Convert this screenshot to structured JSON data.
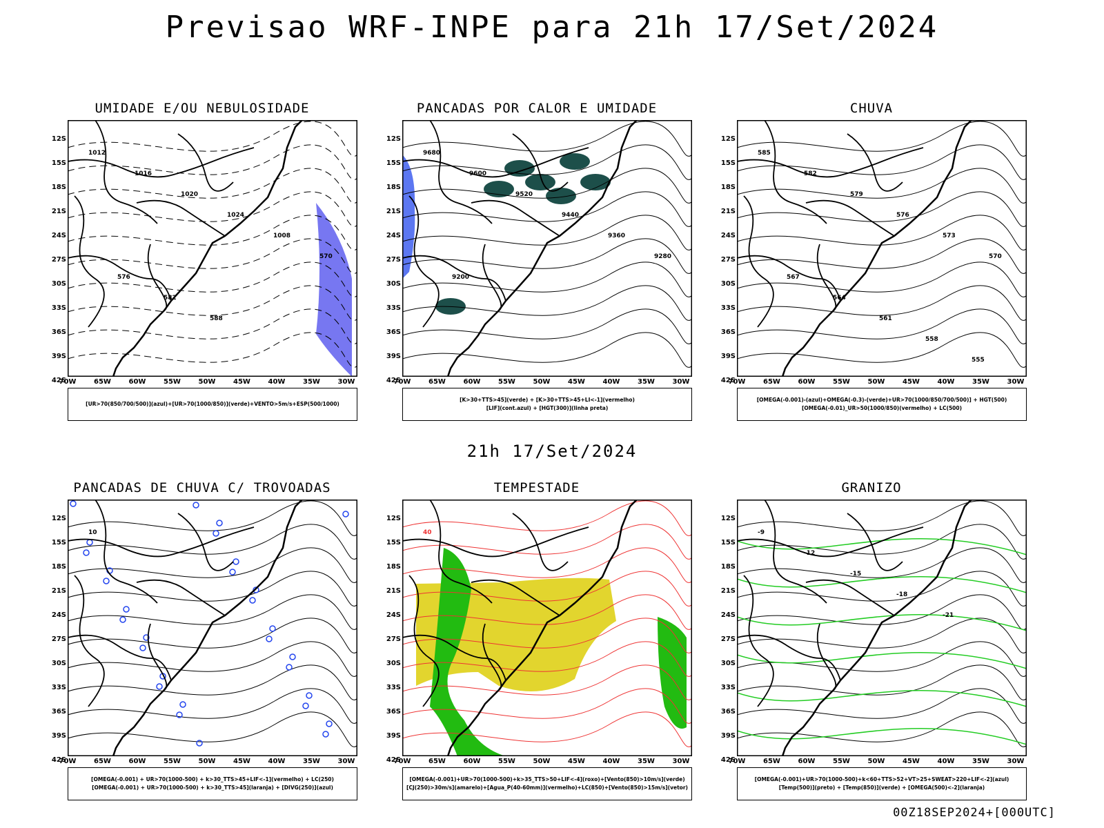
{
  "main_title": "Previsao WRF-INPE  para 21h 17/Set/2024",
  "mid_title": "21h 17/Set/2024",
  "footer": "00Z18SEP2024+[000UTC]",
  "lat_ticks": [
    "12S",
    "15S",
    "18S",
    "21S",
    "24S",
    "27S",
    "30S",
    "33S",
    "36S",
    "39S",
    "42S"
  ],
  "lon_ticks": [
    "70W",
    "65W",
    "60W",
    "55W",
    "50W",
    "45W",
    "40W",
    "35W",
    "30W"
  ],
  "panels": [
    {
      "title": "UMIDADE E/OU NEBULOSIDADE",
      "legend": [
        "[UR>70(850/700/500)](azul)+[UR>70(1000/850)](verde)+VENTO>5m/s+ESP(500/1000)"
      ],
      "labels": [
        "1012",
        "1016",
        "1020",
        "1024",
        "1008",
        "570",
        "576",
        "582",
        "588"
      ]
    },
    {
      "title": "PANCADAS POR CALOR E UMIDADE",
      "legend": [
        "[K>30+TTS>45](verde) + [K>30+TTS>45+LI<-1](vermelho)",
        "[LIF](cont.azul) + [HGT(300)](linha preta)"
      ],
      "labels": [
        "9680",
        "9600",
        "9520",
        "9440",
        "9360",
        "9280",
        "9200"
      ]
    },
    {
      "title": "CHUVA",
      "legend": [
        "[OMEGA(-0.001)-(azul)+OMEGA(-0.3)-(verde)+UR>70(1000/850/700/500)] + HGT(500)",
        "[OMEGA(-0.01)_UR>50(1000/850)(vermelho) + LC(500)"
      ],
      "labels": [
        "585",
        "582",
        "579",
        "576",
        "573",
        "570",
        "567",
        "564",
        "561",
        "558",
        "555"
      ]
    },
    {
      "title": "PANCADAS DE CHUVA C/ TROVOADAS",
      "legend": [
        "[OMEGA(-0.001) + UR>70(1000-500) + k>30_TTS>45+LIF<-1](vermelho) + LC(250)",
        "[OMEGA(-0.001) + UR>70(1000-500) + k>30_TTS>45](laranja) + [DIVG(250)](azul)"
      ],
      "labels": [
        "10"
      ]
    },
    {
      "title": "TEMPESTADE",
      "legend": [
        "[OMEGA(-0.001)+UR>70(1000-500)+k>35_TTS>50+LIF<-4](roxo)+[Vento(850)>10m/s](verde)",
        "[CJ(250)>30m/s](amarelo)+[Agua_P(40-60mm)](vermelho)+LC(850)+[Vento(850)>15m/s](vetor)"
      ],
      "labels": [
        "40"
      ]
    },
    {
      "title": "GRANIZO",
      "legend": [
        "[OMEGA(-0.001)+UR>70(1000-500)+k<60+TTS>52+VT>25+SWEAT>220+LIF<-2](azul)",
        "[Temp(500)](preto) + [Temp(850)](verde) + [OMEGA(500)<-2](laranja)"
      ],
      "labels": [
        "-9",
        "-12",
        "-15",
        "-18",
        "-21"
      ]
    }
  ]
}
